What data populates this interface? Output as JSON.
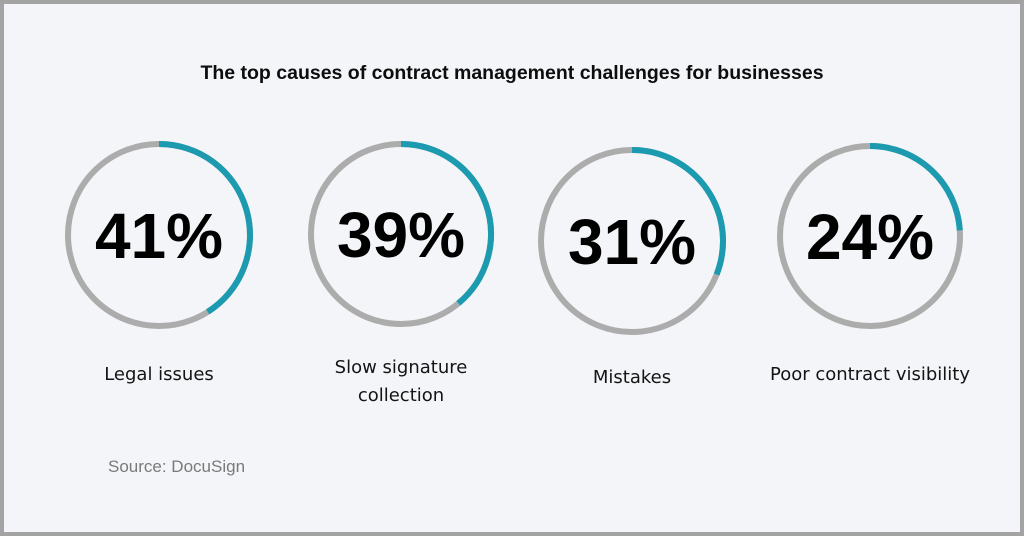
{
  "chart_data": {
    "type": "donut",
    "title": "The top causes of contract management challenges for businesses",
    "categories": [
      "Legal issues",
      "Slow signature\ncollection",
      "Mistakes",
      "Poor contract visibility"
    ],
    "values": [
      41,
      39,
      31,
      24
    ],
    "value_labels": [
      "41%",
      "39%",
      "31%",
      "24%"
    ],
    "unit": "%",
    "max": 100,
    "colors": {
      "progress": "#1b9ab0",
      "track": "#acacac",
      "value_text": "#000000"
    }
  },
  "footer": {
    "source": "Source: DocuSign"
  }
}
